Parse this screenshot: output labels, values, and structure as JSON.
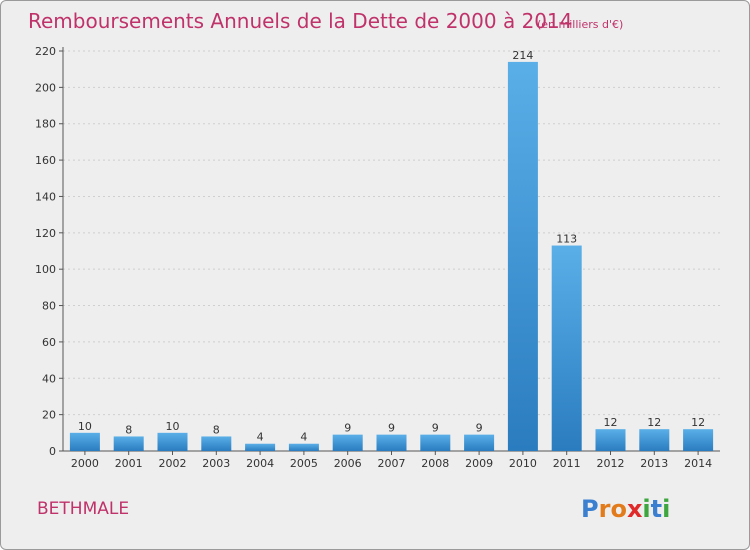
{
  "chart_data": {
    "type": "bar",
    "title": "Remboursements Annuels de la Dette de 2000 à 2014",
    "subtitle": "(en milliers d'€)",
    "categories": [
      "2000",
      "2001",
      "2002",
      "2003",
      "2004",
      "2005",
      "2006",
      "2007",
      "2008",
      "2009",
      "2010",
      "2011",
      "2012",
      "2013",
      "2014"
    ],
    "values": [
      10,
      8,
      10,
      8,
      4,
      4,
      9,
      9,
      9,
      9,
      214,
      113,
      12,
      12,
      12
    ],
    "ylim": [
      0,
      220
    ],
    "yticks": [
      0,
      20,
      40,
      60,
      80,
      100,
      120,
      140,
      160,
      180,
      200,
      220
    ],
    "xlabel": "",
    "ylabel": "",
    "grid": true
  },
  "town": "BETHMALE",
  "logo": {
    "letters": [
      "P",
      "r",
      "o",
      "x",
      "i",
      "t",
      "i"
    ]
  },
  "colors": {
    "bar_light": "#5aafe8",
    "bar_dark": "#2a7cbf",
    "title": "#c0326a",
    "grid": "#cfcfcf",
    "axis": "#555555",
    "logo": [
      "#3a7fd0",
      "#e27b1b",
      "#e27b1b",
      "#e02a2a",
      "#3ea63e",
      "#3a7fd0",
      "#3ea63e"
    ]
  }
}
